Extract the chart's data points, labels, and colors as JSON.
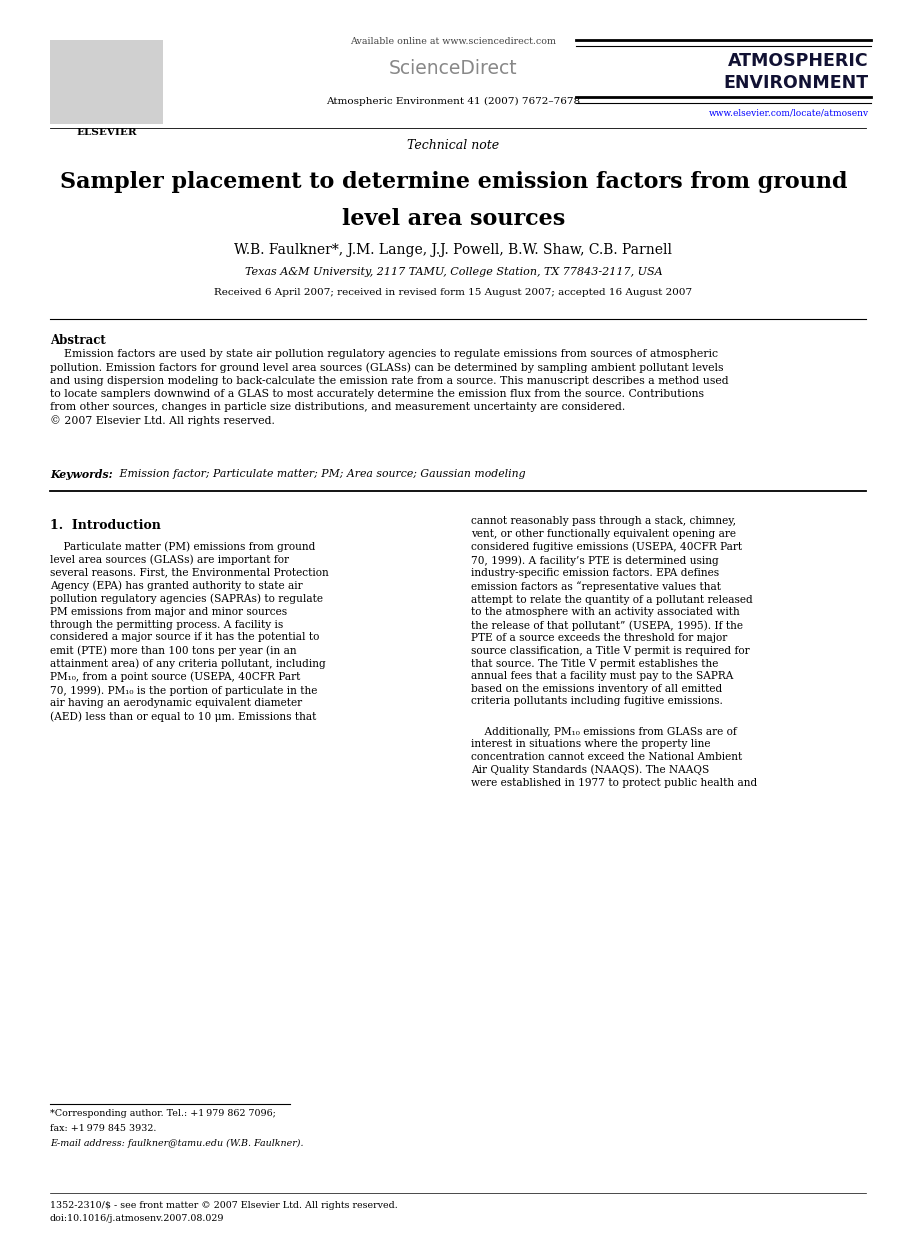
{
  "page_bg": "#ffffff",
  "header": {
    "elsevier_text": "ELSEVIER",
    "available_online": "Available online at www.sciencedirect.com",
    "sciencedirect": "ScienceDirect",
    "journal_info": "Atmospheric Environment 41 (2007) 7672–7678",
    "atmos_env_line1": "ATMOSPHERIC",
    "atmos_env_line2": "ENVIRONMENT",
    "website": "www.elsevier.com/locate/atmosenv"
  },
  "article_type": "Technical note",
  "title_line1": "Sampler placement to determine emission factors from ground",
  "title_line2": "level area sources",
  "authors": "W.B. Faulkner*, J.M. Lange, J.J. Powell, B.W. Shaw, C.B. Parnell",
  "affiliation": "Texas A&M University, 2117 TAMU, College Station, TX 77843-2117, USA",
  "received": "Received 6 April 2007; received in revised form 15 August 2007; accepted 16 August 2007",
  "abstract_label": "Abstract",
  "abstract_text": "    Emission factors are used by state air pollution regulatory agencies to regulate emissions from sources of atmospheric\npollution. Emission factors for ground level area sources (GLASs) can be determined by sampling ambient pollutant levels\nand using dispersion modeling to back-calculate the emission rate from a source. This manuscript describes a method used\nto locate samplers downwind of a GLAS to most accurately determine the emission flux from the source. Contributions\nfrom other sources, changes in particle size distributions, and measurement uncertainty are considered.\n© 2007 Elsevier Ltd. All rights reserved.",
  "keywords_label": "Keywords:",
  "keywords_text": " Emission factor; Particulate matter; PM; Area source; Gaussian modeling",
  "section1_label": "1.  Introduction",
  "col1_para1": "    Particulate matter (PM) emissions from ground\nlevel area sources (GLASs) are important for\nseveral reasons. First, the Environmental Protection\nAgency (EPA) has granted authority to state air\npollution regulatory agencies (SAPRAs) to regulate\nPM emissions from major and minor sources\nthrough the permitting process. A facility is\nconsidered a major source if it has the potential to\nemit (PTE) more than 100 tons per year (in an\nattainment area) of any criteria pollutant, including\nPM₁₀, from a point source (USEPA, 40CFR Part\n70, 1999). PM₁₀ is the portion of particulate in the\nair having an aerodynamic equivalent diameter\n(AED) less than or equal to 10 μm. Emissions that",
  "col2_para1": "cannot reasonably pass through a stack, chimney,\nvent, or other functionally equivalent opening are\nconsidered fugitive emissions (USEPA, 40CFR Part\n70, 1999). A facility’s PTE is determined using\nindustry-specific emission factors. EPA defines\nemission factors as “representative values that\nattempt to relate the quantity of a pollutant released\nto the atmosphere with an activity associated with\nthe release of that pollutant” (USEPA, 1995). If the\nPTE of a source exceeds the threshold for major\nsource classification, a Title V permit is required for\nthat source. The Title V permit establishes the\nannual fees that a facility must pay to the SAPRA\nbased on the emissions inventory of all emitted\ncriteria pollutants including fugitive emissions.",
  "col2_para2": "    Additionally, PM₁₀ emissions from GLASs are of\ninterest in situations where the property line\nconcentration cannot exceed the National Ambient\nAir Quality Standards (NAAQS). The NAAQS\nwere established in 1977 to protect public health and",
  "footnote1": "*Corresponding author. Tel.: +1 979 862 7096;",
  "footnote2": "fax: +1 979 845 3932.",
  "footnote3": "E-mail address: faulkner@tamu.edu (W.B. Faulkner).",
  "bottom_line1": "1352-2310/$ - see front matter © 2007 Elsevier Ltd. All rights reserved.",
  "bottom_line2": "doi:10.1016/j.atmosenv.2007.08.029"
}
